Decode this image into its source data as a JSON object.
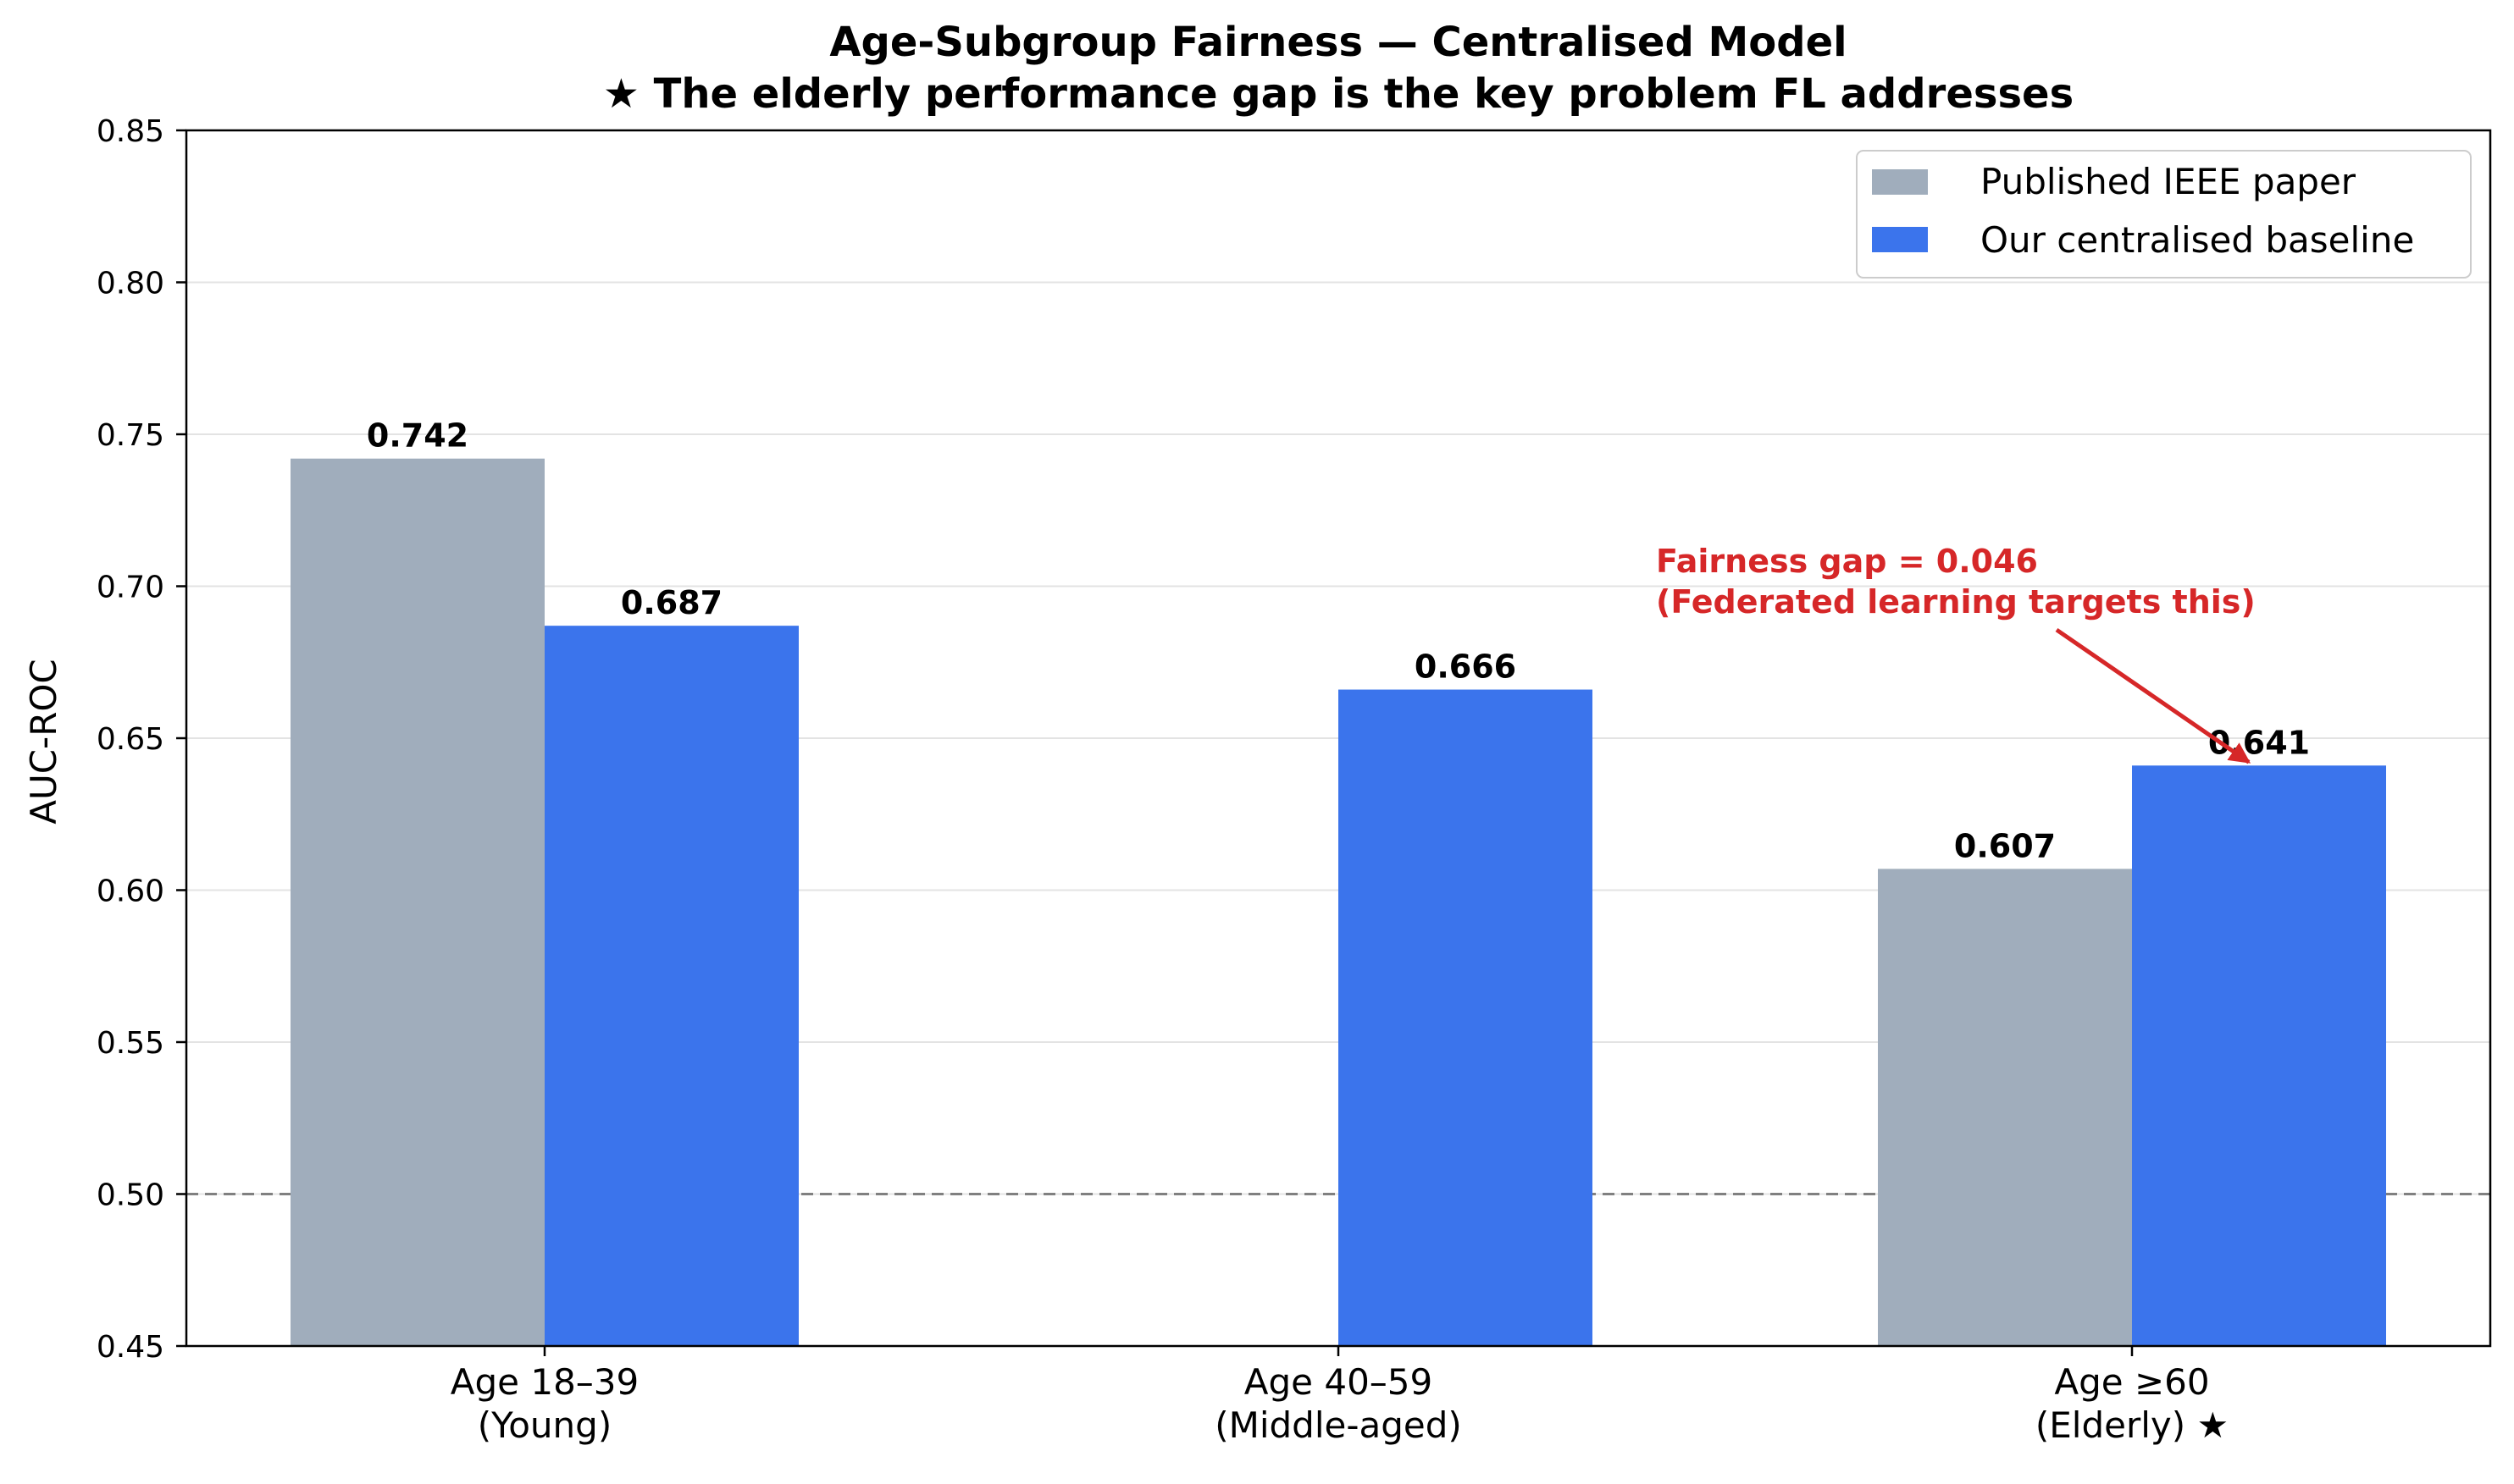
{
  "chart_data": {
    "type": "bar",
    "title_line1": "Age-Subgroup Fairness — Centralised Model",
    "title_line2": "★ The elderly performance gap is the key problem FL addresses",
    "xlabel": "",
    "ylabel": "AUC-ROC",
    "ylim": [
      0.45,
      0.85
    ],
    "yticks": [
      "0.45",
      "0.50",
      "0.55",
      "0.60",
      "0.65",
      "0.70",
      "0.75",
      "0.80",
      "0.85"
    ],
    "grid": "horizontal",
    "legend_position": "top-right",
    "categories": [
      {
        "line1": "Age 18–39",
        "line2": "(Young)"
      },
      {
        "line1": "Age 40–59",
        "line2": "(Middle-aged)"
      },
      {
        "line1": "Age ≥60",
        "line2": "(Elderly)  ★"
      }
    ],
    "series": [
      {
        "name": "Published IEEE paper",
        "color": "#a0adbc",
        "values": [
          0.742,
          null,
          0.607
        ],
        "labels": [
          "0.742",
          "",
          "0.607"
        ]
      },
      {
        "name": "Our centralised baseline",
        "color": "#3b74ec",
        "values": [
          0.687,
          0.666,
          0.641
        ],
        "labels": [
          "0.687",
          "0.666",
          "0.641"
        ]
      }
    ],
    "reference_line": {
      "y": 0.5,
      "style": "dashed",
      "color": "#808080"
    },
    "annotation": {
      "line1": "Fairness gap = 0.046",
      "line2": "(Federated learning targets this)",
      "color": "#d62728",
      "points_to": {
        "category": 2,
        "series": 1,
        "value": 0.641
      }
    }
  }
}
